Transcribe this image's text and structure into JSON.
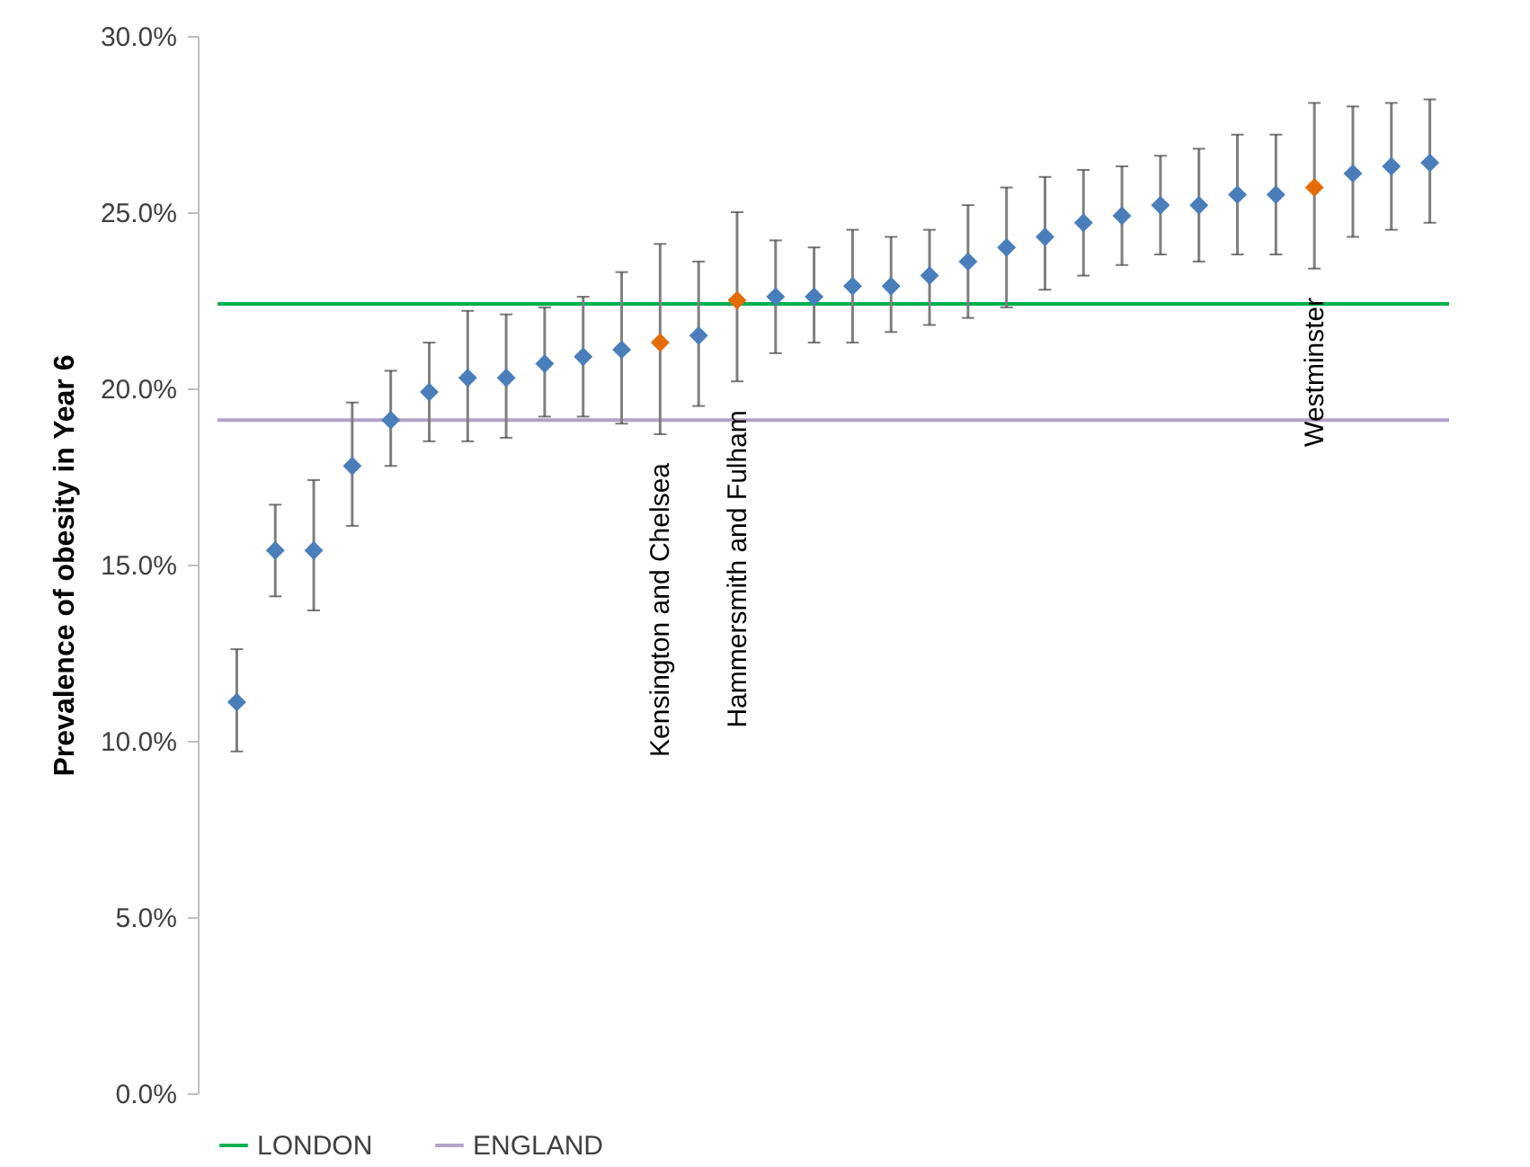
{
  "chart_data": {
    "type": "scatter",
    "ylabel": "Prevalence of obesity in Year 6",
    "categories": [
      null,
      null,
      null,
      null,
      null,
      null,
      null,
      null,
      null,
      null,
      null,
      "Kensington and Chelsea",
      null,
      "Hammersmith and Fulham",
      null,
      null,
      null,
      null,
      null,
      null,
      null,
      null,
      null,
      null,
      null,
      null,
      null,
      null,
      "Westminster",
      null,
      null,
      null
    ],
    "values": [
      11.1,
      15.4,
      15.4,
      17.8,
      19.1,
      19.9,
      20.3,
      20.3,
      20.7,
      20.9,
      21.1,
      21.3,
      21.5,
      22.5,
      22.6,
      22.6,
      22.9,
      22.9,
      23.2,
      23.6,
      24.0,
      24.3,
      24.7,
      24.9,
      25.2,
      25.2,
      25.5,
      25.5,
      25.7,
      26.1,
      26.3,
      26.4
    ],
    "errors": [
      [
        9.7,
        12.6
      ],
      [
        14.1,
        16.7
      ],
      [
        13.7,
        17.4
      ],
      [
        16.1,
        19.6
      ],
      [
        17.8,
        20.5
      ],
      [
        18.5,
        21.3
      ],
      [
        18.5,
        22.2
      ],
      [
        18.6,
        22.1
      ],
      [
        19.2,
        22.3
      ],
      [
        19.2,
        22.6
      ],
      [
        19.0,
        23.3
      ],
      [
        18.7,
        24.1
      ],
      [
        19.5,
        23.6
      ],
      [
        20.2,
        25.0
      ],
      [
        21.0,
        24.2
      ],
      [
        21.3,
        24.0
      ],
      [
        21.3,
        24.5
      ],
      [
        21.6,
        24.3
      ],
      [
        21.8,
        24.5
      ],
      [
        22.0,
        25.2
      ],
      [
        22.3,
        25.7
      ],
      [
        22.8,
        26.0
      ],
      [
        23.2,
        26.2
      ],
      [
        23.5,
        26.3
      ],
      [
        23.8,
        26.6
      ],
      [
        23.6,
        26.8
      ],
      [
        23.8,
        27.2
      ],
      [
        23.8,
        27.2
      ],
      [
        23.4,
        28.1
      ],
      [
        24.3,
        28.0
      ],
      [
        24.5,
        28.1
      ],
      [
        24.7,
        28.2
      ]
    ],
    "colors": [
      "#4a7ebb",
      "#4a7ebb",
      "#4a7ebb",
      "#4a7ebb",
      "#4a7ebb",
      "#4a7ebb",
      "#4a7ebb",
      "#4a7ebb",
      "#4a7ebb",
      "#4a7ebb",
      "#4a7ebb",
      "#e46c0a",
      "#4a7ebb",
      "#e46c0a",
      "#4a7ebb",
      "#4a7ebb",
      "#4a7ebb",
      "#4a7ebb",
      "#4a7ebb",
      "#4a7ebb",
      "#4a7ebb",
      "#4a7ebb",
      "#4a7ebb",
      "#4a7ebb",
      "#4a7ebb",
      "#4a7ebb",
      "#4a7ebb",
      "#4a7ebb",
      "#e46c0a",
      "#4a7ebb",
      "#4a7ebb",
      "#4a7ebb"
    ],
    "marker": "diamond",
    "ylim": [
      0,
      30
    ],
    "yticks": [
      {
        "value": 0,
        "label": "0.0%"
      },
      {
        "value": 5,
        "label": "5.0%"
      },
      {
        "value": 10,
        "label": "10.0%"
      },
      {
        "value": 15,
        "label": "15.0%"
      },
      {
        "value": 20,
        "label": "20.0%"
      },
      {
        "value": 25,
        "label": "25.0%"
      },
      {
        "value": 30,
        "label": "30.0%"
      }
    ],
    "ref_lines": [
      {
        "axis": "y",
        "value": 22.4,
        "label": "LONDON",
        "color": "#00b050"
      },
      {
        "axis": "y",
        "value": 19.1,
        "label": "ENGLAND",
        "color": "#b3a2c7"
      }
    ],
    "legend": "bottom",
    "grid": false
  }
}
